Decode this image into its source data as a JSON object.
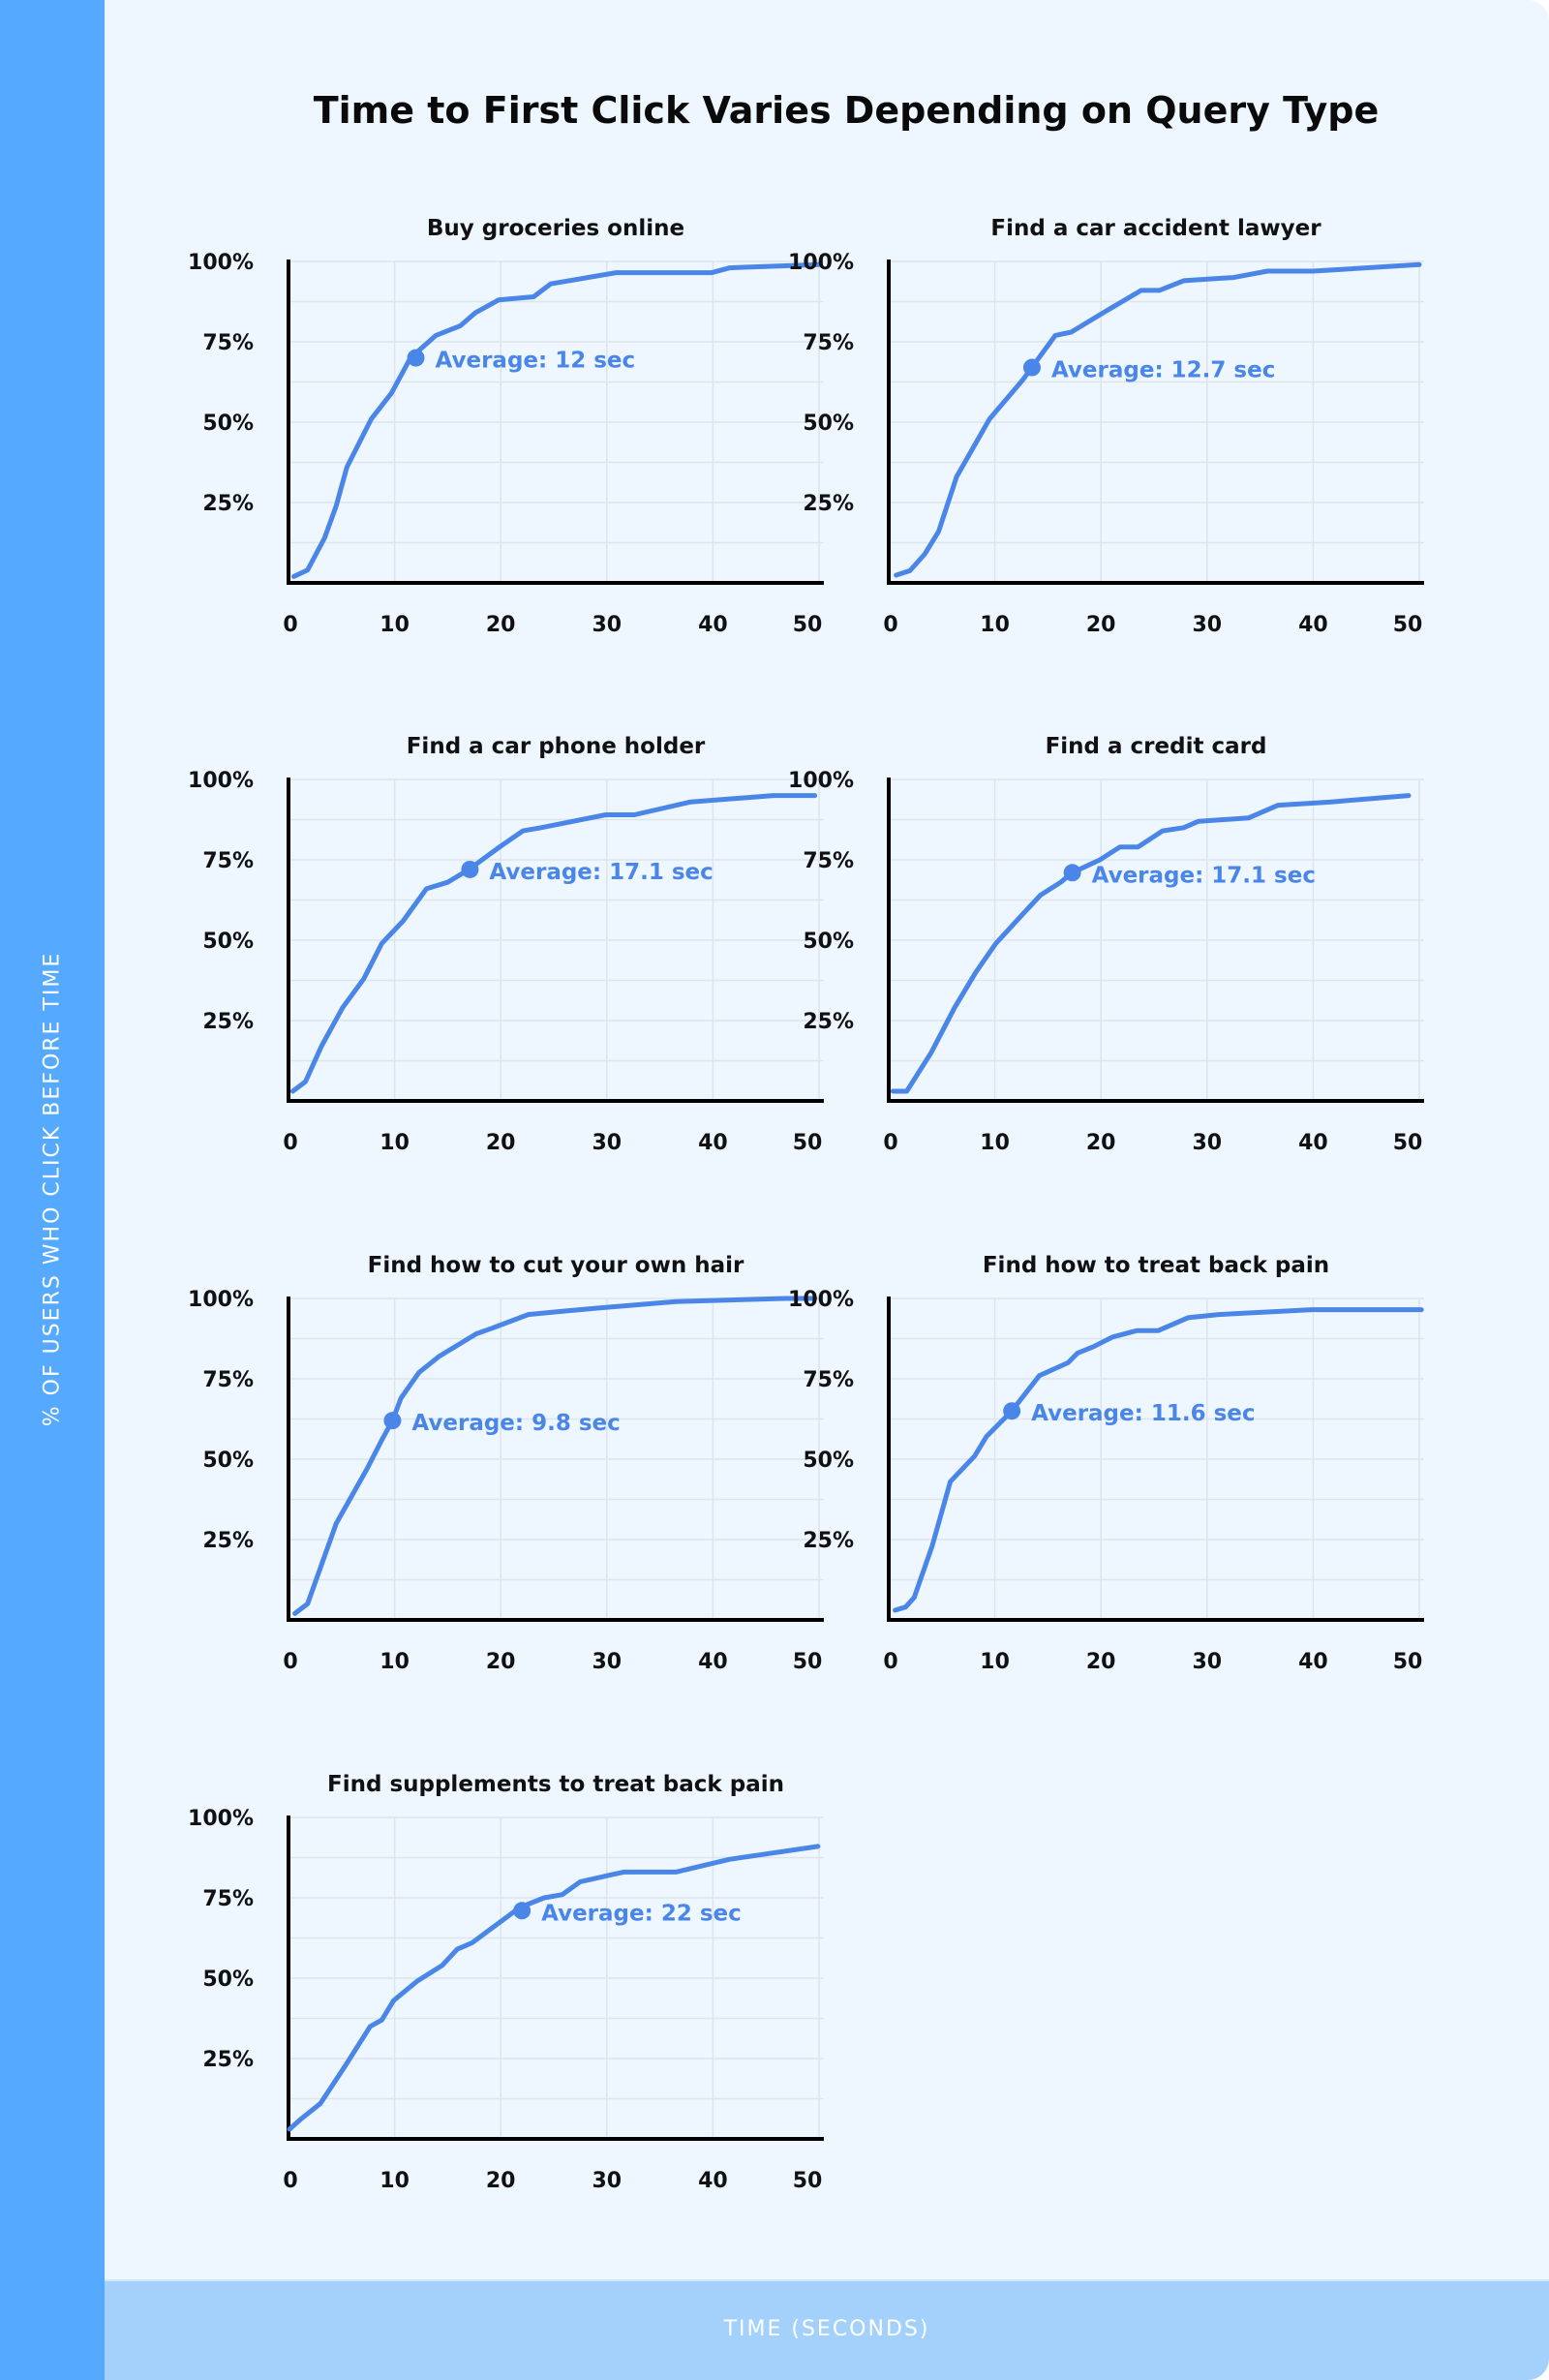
{
  "title": "Time to First Click Varies Depending on Query Type",
  "y_axis_label": "% OF USERS WHO CLICK BEFORE TIME",
  "x_axis_label": "TIME (SECONDS)",
  "colors": {
    "line": "#4a86e8",
    "side_bar": "#55a9ff",
    "bottom_bar": "#a3d1fc",
    "background": "#eef6ff"
  },
  "chart_data": [
    {
      "type": "line",
      "title": "Buy groceries online",
      "xlim": [
        0,
        50
      ],
      "ylim": [
        0,
        100
      ],
      "x_ticks": [
        "0",
        "10",
        "20",
        "30",
        "40",
        "50"
      ],
      "y_ticks": [
        "25%",
        "50%",
        "75%",
        "100%"
      ],
      "grid": true,
      "annotation": {
        "label": "Average: 12 sec",
        "x": 12,
        "y": 70
      },
      "points": [
        [
          0.5,
          2
        ],
        [
          1.8,
          4
        ],
        [
          3.4,
          14
        ],
        [
          4.5,
          24
        ],
        [
          5.5,
          36
        ],
        [
          7.8,
          51
        ],
        [
          9.7,
          59
        ],
        [
          11.5,
          70
        ],
        [
          13.9,
          77
        ],
        [
          16.2,
          80
        ],
        [
          17.6,
          84
        ],
        [
          19.8,
          88
        ],
        [
          23.1,
          89
        ],
        [
          24.7,
          93
        ],
        [
          30.9,
          96.5
        ],
        [
          39.9,
          96.5
        ],
        [
          41.6,
          98
        ],
        [
          50,
          99
        ]
      ]
    },
    {
      "type": "line",
      "title": "Find a car accident lawyer",
      "xlim": [
        0,
        50
      ],
      "ylim": [
        0,
        100
      ],
      "x_ticks": [
        "0",
        "10",
        "20",
        "30",
        "40",
        "50"
      ],
      "y_ticks": [
        "25%",
        "50%",
        "75%",
        "100%"
      ],
      "grid": true,
      "annotation": {
        "label": "Average: 12.7 sec",
        "x": 13.5,
        "y": 67
      },
      "points": [
        [
          0.7,
          2.4
        ],
        [
          2,
          3.8
        ],
        [
          3.4,
          9
        ],
        [
          4.7,
          16
        ],
        [
          6.4,
          33
        ],
        [
          9.5,
          51
        ],
        [
          12.6,
          63
        ],
        [
          15.7,
          77
        ],
        [
          17.2,
          78
        ],
        [
          20.7,
          85
        ],
        [
          23.8,
          91
        ],
        [
          25.5,
          91
        ],
        [
          27.8,
          94
        ],
        [
          32.5,
          95
        ],
        [
          35.7,
          97
        ],
        [
          40,
          97
        ],
        [
          50,
          99
        ]
      ]
    },
    {
      "type": "line",
      "title": "Find a car phone holder",
      "xlim": [
        0,
        50
      ],
      "ylim": [
        0,
        100
      ],
      "x_ticks": [
        "0",
        "10",
        "20",
        "30",
        "40",
        "50"
      ],
      "y_ticks": [
        "25%",
        "50%",
        "75%",
        "100%"
      ],
      "grid": true,
      "annotation": {
        "label": "Average: 17.1 sec",
        "x": 17.1,
        "y": 72
      },
      "points": [
        [
          0.4,
          3
        ],
        [
          1.6,
          6
        ],
        [
          3.1,
          17
        ],
        [
          5.1,
          29
        ],
        [
          7.1,
          38
        ],
        [
          8.8,
          49
        ],
        [
          10.8,
          56
        ],
        [
          13,
          66
        ],
        [
          15,
          68
        ],
        [
          17,
          72
        ],
        [
          19.9,
          79
        ],
        [
          22.1,
          84
        ],
        [
          23.8,
          85
        ],
        [
          29.9,
          89
        ],
        [
          32.6,
          89
        ],
        [
          37.9,
          93
        ],
        [
          45.7,
          95
        ],
        [
          49.6,
          95
        ]
      ]
    },
    {
      "type": "line",
      "title": "Find a credit card",
      "xlim": [
        0,
        50
      ],
      "ylim": [
        0,
        100
      ],
      "x_ticks": [
        "0",
        "10",
        "20",
        "30",
        "40",
        "50"
      ],
      "y_ticks": [
        "25%",
        "50%",
        "75%",
        "100%"
      ],
      "grid": true,
      "annotation": {
        "label": "Average: 17.1 sec",
        "x": 17.3,
        "y": 71
      },
      "points": [
        [
          0.4,
          3
        ],
        [
          1.7,
          3
        ],
        [
          4,
          15
        ],
        [
          6.2,
          29
        ],
        [
          8.2,
          40
        ],
        [
          10.1,
          49
        ],
        [
          12.6,
          58
        ],
        [
          14.3,
          64
        ],
        [
          16.2,
          68
        ],
        [
          17.3,
          71
        ],
        [
          19.9,
          75
        ],
        [
          21.8,
          79
        ],
        [
          23.5,
          79
        ],
        [
          25.8,
          84
        ],
        [
          27.8,
          85
        ],
        [
          29.2,
          87
        ],
        [
          33.9,
          88
        ],
        [
          36.7,
          92
        ],
        [
          41.7,
          93
        ],
        [
          49,
          95
        ]
      ]
    },
    {
      "type": "line",
      "title": "Find how to cut your own hair",
      "xlim": [
        0,
        50
      ],
      "ylim": [
        0,
        100
      ],
      "x_ticks": [
        "0",
        "10",
        "20",
        "30",
        "40",
        "50"
      ],
      "y_ticks": [
        "25%",
        "50%",
        "75%",
        "100%"
      ],
      "grid": true,
      "annotation": {
        "label": "Average: 9.8 sec",
        "x": 9.8,
        "y": 62
      },
      "points": [
        [
          0.6,
          2
        ],
        [
          1.8,
          5
        ],
        [
          4.5,
          30
        ],
        [
          7.4,
          47
        ],
        [
          8.8,
          56
        ],
        [
          9.8,
          62
        ],
        [
          10.6,
          69
        ],
        [
          12.3,
          77
        ],
        [
          14.2,
          82
        ],
        [
          17.7,
          89
        ],
        [
          19.4,
          91
        ],
        [
          22.6,
          95
        ],
        [
          25.8,
          96
        ],
        [
          29.1,
          97
        ],
        [
          36.5,
          99
        ],
        [
          46.8,
          100
        ],
        [
          49.6,
          100
        ]
      ]
    },
    {
      "type": "line",
      "title": "Find how to treat back pain",
      "xlim": [
        0,
        50
      ],
      "ylim": [
        0,
        100
      ],
      "x_ticks": [
        "0",
        "10",
        "20",
        "30",
        "40",
        "50"
      ],
      "y_ticks": [
        "25%",
        "50%",
        "75%",
        "100%"
      ],
      "grid": true,
      "annotation": {
        "label": "Average: 11.6 sec",
        "x": 11.6,
        "y": 65
      },
      "points": [
        [
          0.6,
          3
        ],
        [
          1.6,
          4
        ],
        [
          2.4,
          7
        ],
        [
          4.1,
          23
        ],
        [
          5.8,
          43
        ],
        [
          8.1,
          51
        ],
        [
          9.2,
          57
        ],
        [
          11.6,
          65
        ],
        [
          14.2,
          76
        ],
        [
          16.9,
          80
        ],
        [
          17.8,
          83
        ],
        [
          19.3,
          85
        ],
        [
          21.1,
          88
        ],
        [
          23.4,
          90
        ],
        [
          25.4,
          90
        ],
        [
          28.2,
          94
        ],
        [
          31.1,
          95
        ],
        [
          39.9,
          96.5
        ],
        [
          50.2,
          96.5
        ]
      ]
    },
    {
      "type": "line",
      "title": "Find supplements to treat back pain",
      "xlim": [
        0,
        50
      ],
      "ylim": [
        0,
        100
      ],
      "x_ticks": [
        "0",
        "10",
        "20",
        "30",
        "40",
        "50"
      ],
      "y_ticks": [
        "25%",
        "50%",
        "75%",
        "100%"
      ],
      "grid": true,
      "annotation": {
        "label": "Average: 22 sec",
        "x": 22,
        "y": 71
      },
      "points": [
        [
          0.1,
          3
        ],
        [
          1.1,
          6
        ],
        [
          3,
          11
        ],
        [
          5.4,
          23
        ],
        [
          7.7,
          35
        ],
        [
          8.8,
          37
        ],
        [
          9.9,
          43
        ],
        [
          12.1,
          49
        ],
        [
          14.5,
          54
        ],
        [
          15.9,
          59
        ],
        [
          17.3,
          61
        ],
        [
          21.8,
          72
        ],
        [
          24.1,
          75
        ],
        [
          25.8,
          76
        ],
        [
          27.5,
          80
        ],
        [
          31.6,
          83
        ],
        [
          36.5,
          83
        ],
        [
          41.6,
          87
        ],
        [
          49.9,
          91
        ]
      ]
    }
  ]
}
